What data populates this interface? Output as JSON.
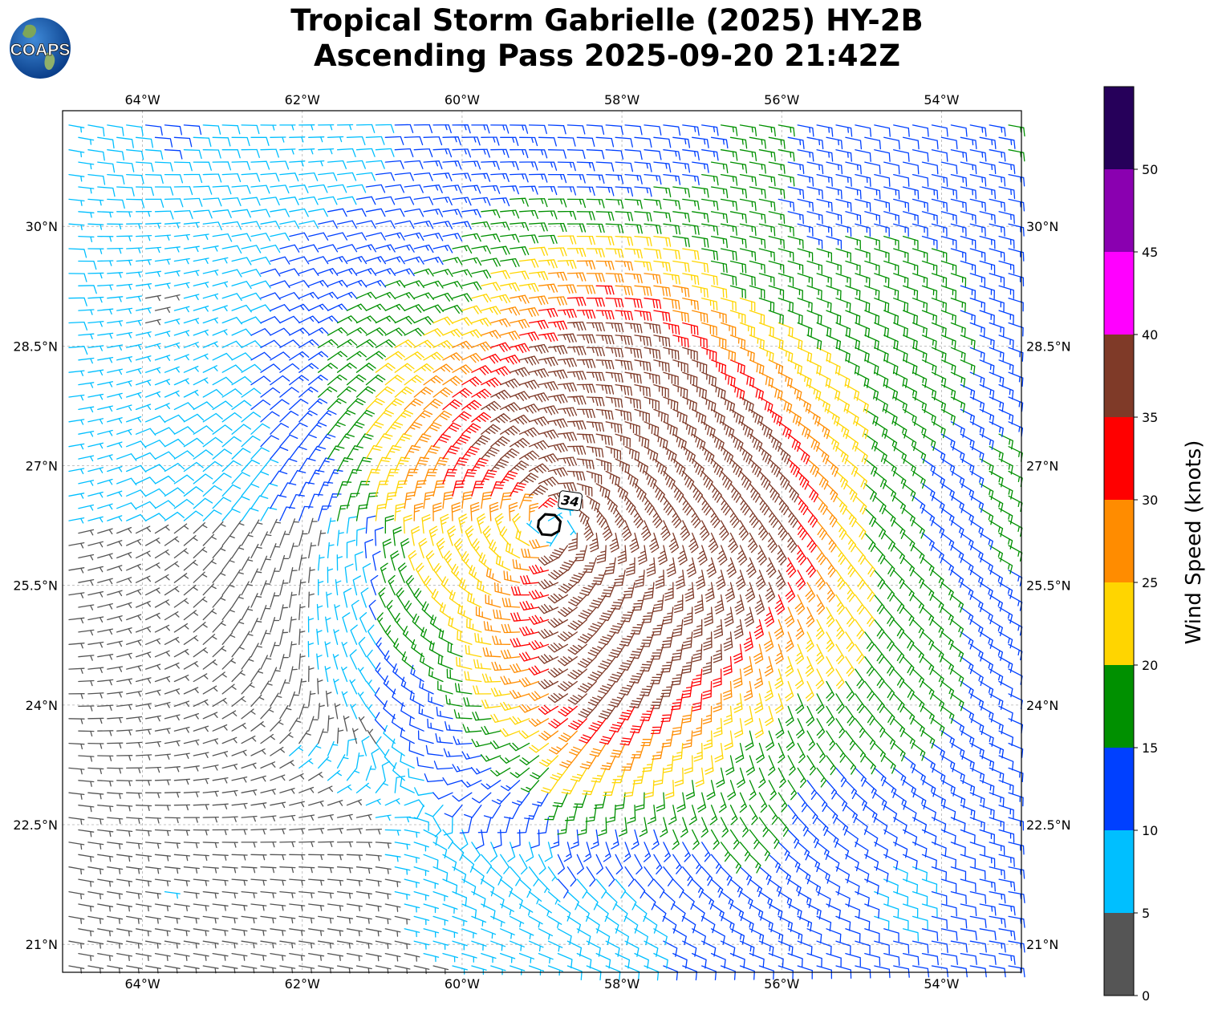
{
  "title": {
    "line1": "Tropical Storm Gabrielle (2025) HY-2B",
    "line2": "Ascending Pass 2025-09-20 21:42Z"
  },
  "logo": {
    "text": "COAPS",
    "icon": "globe-logo-icon"
  },
  "map": {
    "lon_range": [
      -65.0,
      -53.0
    ],
    "lat_range": [
      20.65,
      31.45
    ],
    "grid": true,
    "lon_ticks": [
      {
        "value": -64,
        "label": "64°W"
      },
      {
        "value": -62,
        "label": "62°W"
      },
      {
        "value": -60,
        "label": "60°W"
      },
      {
        "value": -58,
        "label": "58°W"
      },
      {
        "value": -56,
        "label": "56°W"
      },
      {
        "value": -54,
        "label": "54°W"
      }
    ],
    "lat_ticks": [
      {
        "value": 30,
        "label": "30°N"
      },
      {
        "value": 28.5,
        "label": "28.5°N"
      },
      {
        "value": 27,
        "label": "27°N"
      },
      {
        "value": 25.5,
        "label": "25.5°N"
      },
      {
        "value": 24,
        "label": "24°N"
      },
      {
        "value": 22.5,
        "label": "22.5°N"
      },
      {
        "value": 21,
        "label": "21°N"
      }
    ],
    "storm_center": {
      "lon": -58.9,
      "lat": 26.25
    },
    "radius_contour_label": "34",
    "colors": {
      "grid": "#b0b0b0",
      "contour": "#000000"
    }
  },
  "colorbar": {
    "label": "Wind Speed (knots)",
    "bins": [
      {
        "min": 0,
        "max": 5,
        "color": "#555555"
      },
      {
        "min": 5,
        "max": 10,
        "color": "#00bfff"
      },
      {
        "min": 10,
        "max": 15,
        "color": "#0040ff"
      },
      {
        "min": 15,
        "max": 20,
        "color": "#009000"
      },
      {
        "min": 20,
        "max": 25,
        "color": "#ffd500"
      },
      {
        "min": 25,
        "max": 30,
        "color": "#ff8c00"
      },
      {
        "min": 30,
        "max": 35,
        "color": "#ff0000"
      },
      {
        "min": 35,
        "max": 40,
        "color": "#7f3a28"
      },
      {
        "min": 40,
        "max": 45,
        "color": "#ff00ff"
      },
      {
        "min": 45,
        "max": 50,
        "color": "#8a00b0"
      },
      {
        "min": 50,
        "max": 55,
        "color": "#26005a"
      }
    ],
    "ticks": [
      "0",
      "5",
      "10",
      "15",
      "20",
      "25",
      "30",
      "35",
      "40",
      "45",
      "50"
    ]
  }
}
